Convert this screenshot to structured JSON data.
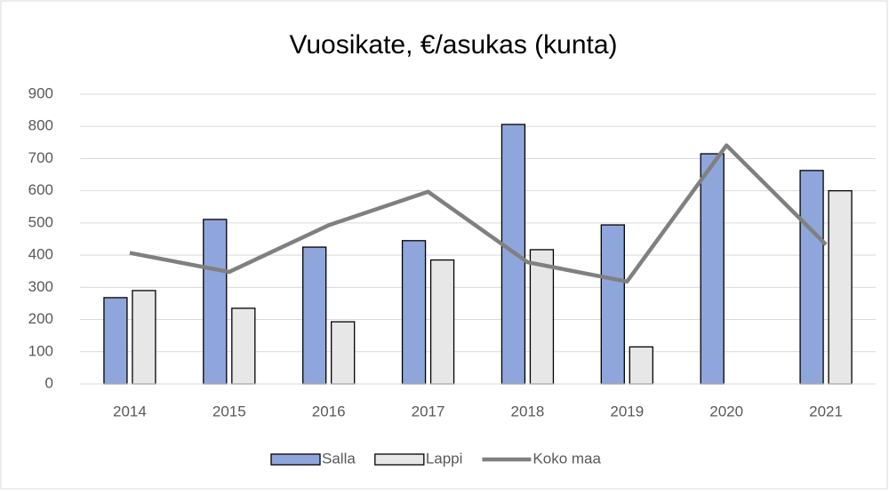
{
  "chart_data": {
    "type": "bar",
    "title": "Vuosikate, €/asukas (kunta)",
    "categories": [
      "2014",
      "2015",
      "2016",
      "2017",
      "2018",
      "2019",
      "2020",
      "2021"
    ],
    "series": [
      {
        "name": "Salla",
        "type": "bar",
        "color": "#8fa6dc",
        "values": [
          268,
          511,
          425,
          445,
          806,
          494,
          715,
          663
        ]
      },
      {
        "name": "Lappi",
        "type": "bar",
        "color": "#e7e7e7",
        "values": [
          290,
          235,
          193,
          385,
          417,
          115,
          null,
          600
        ]
      },
      {
        "name": "Koko maa",
        "type": "line",
        "color": "#808080",
        "values": [
          407,
          348,
          493,
          597,
          378,
          318,
          741,
          433
        ]
      }
    ],
    "ylim": [
      0,
      900
    ],
    "yticks": [
      0,
      100,
      200,
      300,
      400,
      500,
      600,
      700,
      800,
      900
    ],
    "grid": true,
    "legend": "bottom"
  }
}
